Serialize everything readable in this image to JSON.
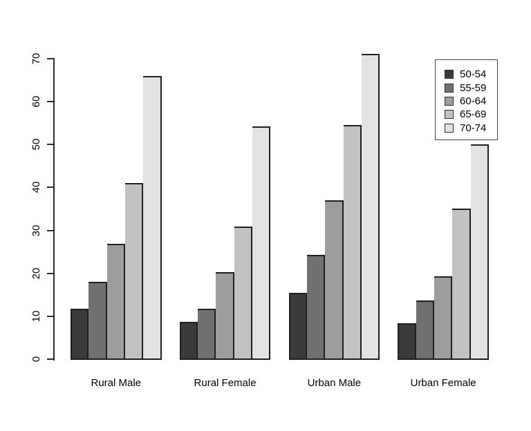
{
  "chart_data": {
    "type": "bar",
    "title": "",
    "xlabel": "",
    "ylabel": "",
    "categories": [
      "Rural Male",
      "Rural Female",
      "Urban Male",
      "Urban Female"
    ],
    "series": [
      {
        "name": "50-54",
        "color": "#3b3b3b",
        "values": [
          11.7,
          8.7,
          15.4,
          8.4
        ]
      },
      {
        "name": "55-59",
        "color": "#707070",
        "values": [
          18.1,
          11.7,
          24.3,
          13.6
        ]
      },
      {
        "name": "60-64",
        "color": "#9d9d9d",
        "values": [
          26.9,
          20.3,
          37.0,
          19.3
        ]
      },
      {
        "name": "65-69",
        "color": "#c2c2c2",
        "values": [
          41.0,
          30.9,
          54.6,
          35.1
        ]
      },
      {
        "name": "70-74",
        "color": "#e2e2e2",
        "values": [
          66.0,
          54.3,
          71.1,
          50.0
        ]
      }
    ],
    "ylim": [
      0,
      70
    ],
    "yticks": [
      0,
      10,
      20,
      30,
      40,
      50,
      60,
      70
    ],
    "grid": false,
    "legend_position": "top-right",
    "colors": {
      "bar_border": "#1f1f1f",
      "axis": "#2b2b2b",
      "text": "#000000",
      "background": "#ffffff"
    }
  }
}
